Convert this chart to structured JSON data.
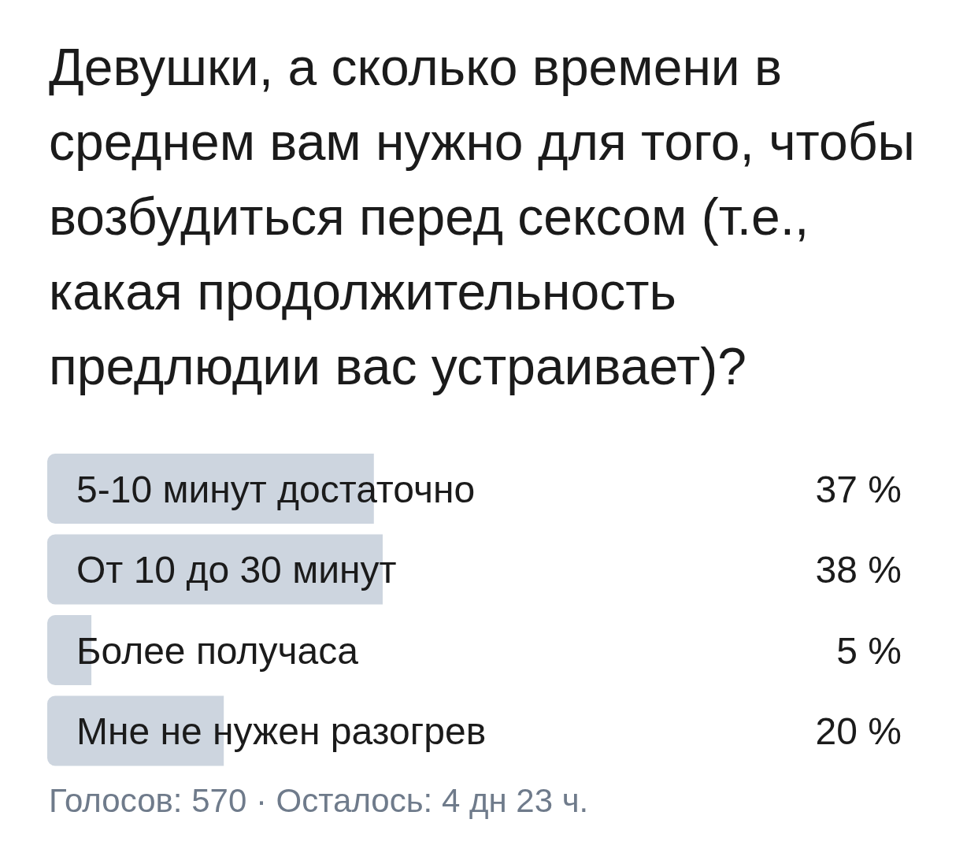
{
  "chart_data": {
    "type": "bar",
    "orientation": "horizontal",
    "title": "Девушки, а сколько времени в среднем вам нужно для того, чтобы возбудиться перед сексом (т.е., какая продолжительность предлюдии вас устраивает)?",
    "categories": [
      "5-10 минут достаточно",
      "От 10 до 30 минут",
      "Более получаса",
      "Мне не нужен разогрев"
    ],
    "values": [
      37,
      38,
      5,
      20
    ],
    "value_labels": [
      "37 %",
      "38 %",
      "5 %",
      "20 %"
    ],
    "color": "#cdd5df",
    "annotations": [
      "Голосов: 570 · Осталось: 4 дн 23 ч."
    ]
  }
}
